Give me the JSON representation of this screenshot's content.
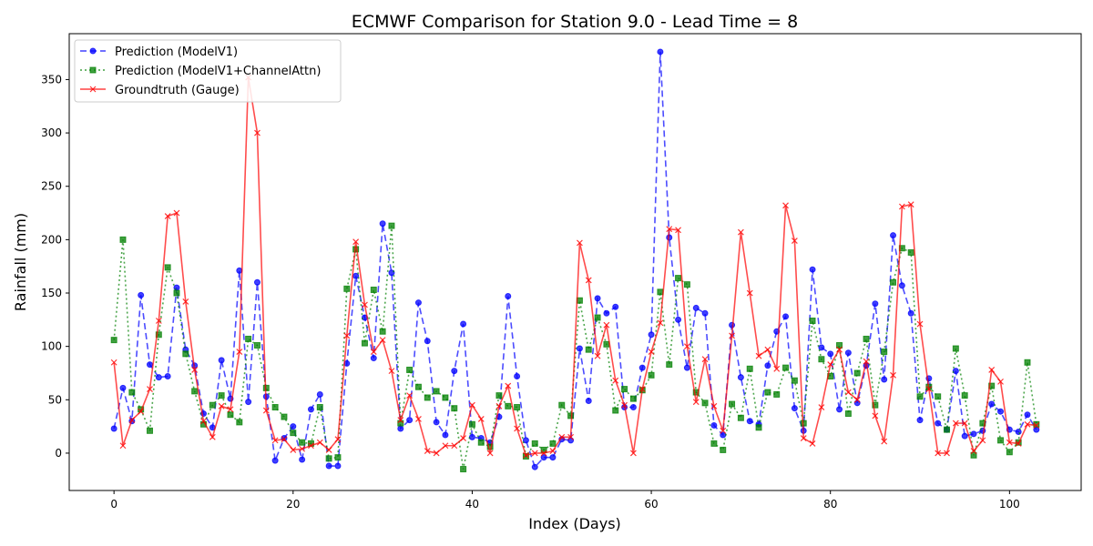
{
  "chart_data": {
    "type": "line",
    "title": "ECMWF Comparison for Station 9.0 - Lead Time = 8",
    "xlabel": "Index (Days)",
    "ylabel": "Rainfall (mm)",
    "xlim": [
      -5,
      108
    ],
    "ylim": [
      -35,
      393
    ],
    "x_ticks": [
      0,
      20,
      40,
      60,
      80,
      100
    ],
    "y_ticks": [
      0,
      50,
      100,
      150,
      200,
      250,
      300,
      350
    ],
    "grid": false,
    "legend_position": "upper-left",
    "series": [
      {
        "name": "Prediction (ModelV1)",
        "color": "#0000ff",
        "line_style": "dashed",
        "marker": "circle",
        "values": [
          23,
          61,
          30,
          148,
          83,
          71,
          72,
          155,
          97,
          82,
          37,
          24,
          87,
          51,
          171,
          48,
          160,
          53,
          -7,
          14,
          25,
          -6,
          41,
          55,
          -12,
          -12,
          84,
          166,
          127,
          89,
          215,
          169,
          23,
          31,
          141,
          105,
          29,
          17,
          77,
          121,
          15,
          14,
          10,
          34,
          147,
          72,
          12,
          -13,
          -4,
          -4,
          13,
          12,
          98,
          49,
          145,
          131,
          137,
          43,
          43,
          80,
          111,
          376,
          202,
          125,
          80,
          136,
          131,
          26,
          17,
          120,
          71,
          30,
          27,
          82,
          114,
          128,
          42,
          21,
          172,
          99,
          93,
          41,
          94,
          47,
          82,
          140,
          69,
          204,
          157,
          131,
          31,
          70,
          28,
          22,
          77,
          16,
          18,
          21,
          46,
          39,
          22,
          20,
          36,
          22
        ]
      },
      {
        "name": "Prediction (ModelV1+ChannelAttn)",
        "color": "#008000",
        "line_style": "dotted",
        "marker": "square",
        "values": [
          106,
          200,
          57,
          41,
          21,
          111,
          174,
          150,
          93,
          58,
          27,
          45,
          54,
          36,
          29,
          107,
          101,
          61,
          43,
          34,
          19,
          10,
          9,
          43,
          -5,
          -4,
          154,
          191,
          103,
          153,
          114,
          213,
          28,
          78,
          62,
          52,
          58,
          52,
          42,
          -15,
          27,
          10,
          6,
          54,
          44,
          43,
          -3,
          9,
          3,
          9,
          45,
          35,
          143,
          97,
          127,
          102,
          40,
          60,
          51,
          59,
          73,
          151,
          83,
          164,
          158,
          57,
          47,
          9,
          3,
          46,
          33,
          79,
          24,
          57,
          55,
          80,
          68,
          28,
          124,
          88,
          72,
          101,
          37,
          75,
          107,
          45,
          95,
          160,
          192,
          188,
          53,
          62,
          53,
          22,
          98,
          54,
          -2,
          28,
          63,
          12,
          1,
          10,
          85,
          27
        ]
      },
      {
        "name": "Groundtruth (Gauge)",
        "color": "#ff0000",
        "line_style": "solid",
        "marker": "x",
        "values": [
          85,
          7,
          31,
          39,
          60,
          124,
          222,
          225,
          142,
          78,
          30,
          15,
          44,
          41,
          95,
          352,
          300,
          40,
          12,
          13,
          3,
          4,
          7,
          10,
          3,
          13,
          110,
          198,
          139,
          95,
          106,
          77,
          31,
          54,
          32,
          2,
          0,
          7,
          7,
          14,
          45,
          32,
          0,
          44,
          63,
          23,
          -2,
          0,
          0,
          2,
          15,
          15,
          197,
          162,
          91,
          120,
          68,
          45,
          0,
          60,
          95,
          122,
          210,
          209,
          100,
          48,
          88,
          44,
          21,
          110,
          207,
          150,
          91,
          97,
          79,
          232,
          199,
          14,
          9,
          43,
          83,
          97,
          57,
          50,
          86,
          35,
          11,
          73,
          231,
          233,
          121,
          60,
          0,
          0,
          28,
          28,
          2,
          12,
          78,
          67,
          10,
          9,
          27,
          26
        ]
      }
    ]
  }
}
